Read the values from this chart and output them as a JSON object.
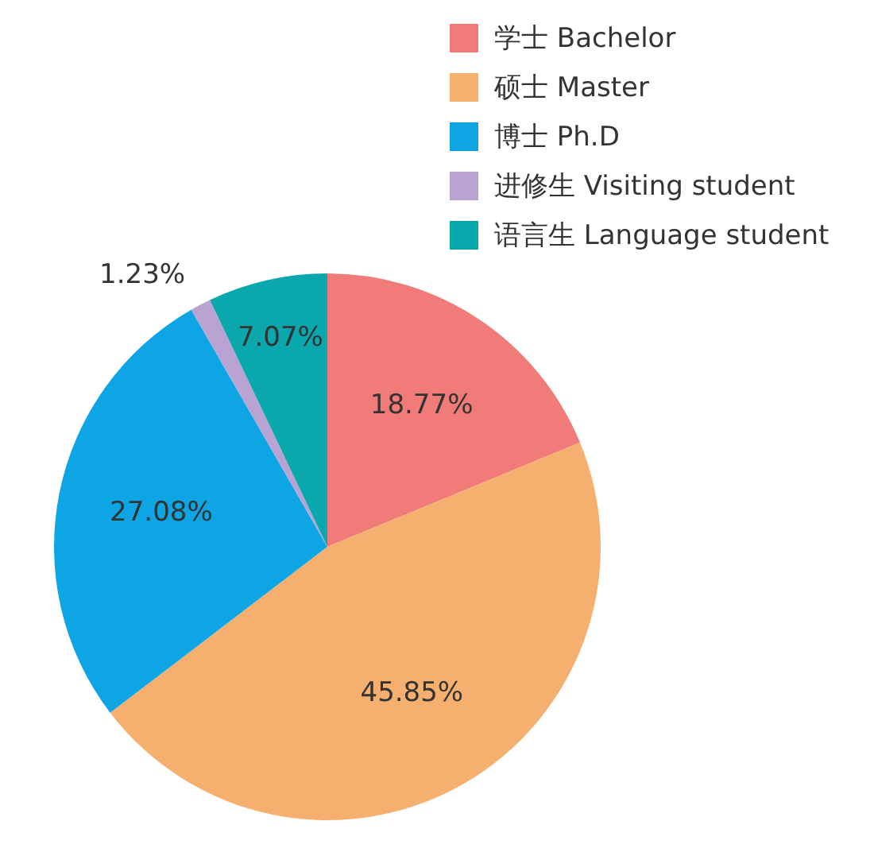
{
  "chart_data": {
    "type": "pie",
    "categories": [
      "学士 Bachelor",
      "硕士 Master",
      "博士 Ph.D",
      "进修生 Visiting student",
      "语言生 Language student"
    ],
    "values": [
      18.77,
      45.85,
      27.08,
      1.23,
      7.07
    ],
    "value_labels": [
      "18.77%",
      "45.85%",
      "27.08%",
      "1.23%",
      "7.07%"
    ],
    "colors": [
      "#f07b78",
      "#f5b06f",
      "#0ea5e4",
      "#b9a3d3",
      "#0aa8ad"
    ],
    "legend": "top right"
  }
}
